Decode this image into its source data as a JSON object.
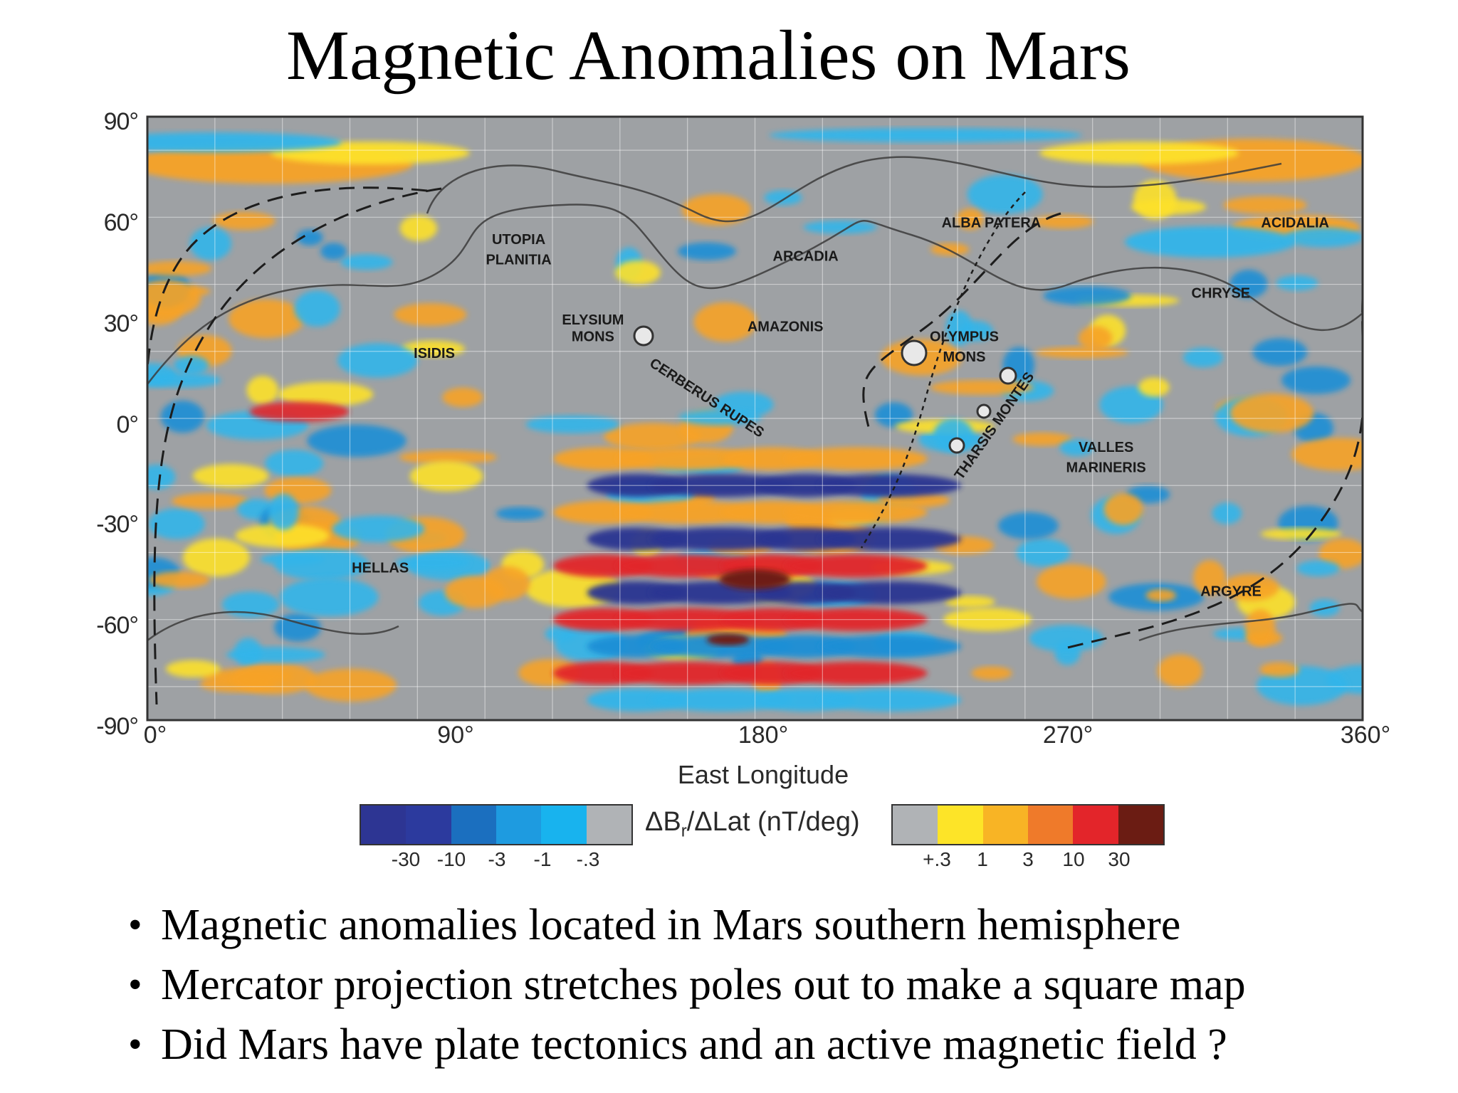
{
  "slide": {
    "title": "Magnetic Anomalies on Mars",
    "bullets": [
      "Magnetic anomalies located in Mars southern hemisphere",
      "Mercator projection stretches poles out to make a square map",
      "Did Mars have plate tectonics and an active magnetic field ?"
    ]
  },
  "map": {
    "lat_labels": [
      "90°",
      "60°",
      "30°",
      "0°",
      "-30°",
      "-60°",
      "-90°"
    ],
    "lon_labels": [
      "0°",
      "90°",
      "180°",
      "270°",
      "360°"
    ],
    "xlabel": "East Longitude",
    "features": [
      {
        "name": "UTOPIA",
        "lon": 110,
        "lat": 52
      },
      {
        "name": "PLANITIA",
        "lon": 110,
        "lat": 46
      },
      {
        "name": "ARCADIA",
        "lon": 195,
        "lat": 47
      },
      {
        "name": "ALBA PATERA",
        "lon": 250,
        "lat": 57
      },
      {
        "name": "ACIDALIA",
        "lon": 340,
        "lat": 57
      },
      {
        "name": "CHRYSE",
        "lon": 318,
        "lat": 36
      },
      {
        "name": "ELYSIUM",
        "lon": 132,
        "lat": 28
      },
      {
        "name": "MONS",
        "lon": 132,
        "lat": 23
      },
      {
        "name": "AMAZONIS",
        "lon": 189,
        "lat": 26
      },
      {
        "name": "OLYMPUS",
        "lon": 242,
        "lat": 23
      },
      {
        "name": "MONS",
        "lon": 242,
        "lat": 17
      },
      {
        "name": "ISIDIS",
        "lon": 85,
        "lat": 18
      },
      {
        "name": "CERBERUS RUPES",
        "lon": 165,
        "lat": 5
      },
      {
        "name": "THARSIS MONTES",
        "lon": 252,
        "lat": -3
      },
      {
        "name": "VALLES",
        "lon": 284,
        "lat": -10
      },
      {
        "name": "MARINERIS",
        "lon": 284,
        "lat": -16
      },
      {
        "name": "HELLAS",
        "lon": 69,
        "lat": -46
      },
      {
        "name": "ARGYRE",
        "lon": 321,
        "lat": -53
      }
    ],
    "colors": {
      "background": "#9ea1a4",
      "anomaly_strong_negative": "#2c3592",
      "anomaly_negative": "#1d8fd6",
      "anomaly_weak_negative": "#33b5ea",
      "anomaly_weak_positive": "#fde12a",
      "anomaly_positive": "#f7a325",
      "anomaly_strong_positive": "#e2262a",
      "anomaly_max": "#6e1a14"
    }
  },
  "legend": {
    "caption_main": "ΔB",
    "caption_sub": "r",
    "caption_rest": "/ΔLat (nT/deg)",
    "negative_ticks": [
      "-30",
      "-10",
      "-3",
      "-1",
      "-.3"
    ],
    "positive_ticks": [
      "+.3",
      "1",
      "3",
      "10",
      "30"
    ],
    "negative_colors": [
      "#2d3593",
      "#2c3a9e",
      "#1b6fbf",
      "#1e9be0",
      "#18b3ee",
      "#b0b3b6"
    ],
    "positive_colors": [
      "#b0b3b6",
      "#fde428",
      "#f8b425",
      "#ef7a2a",
      "#e3252a",
      "#6b1c13"
    ]
  }
}
